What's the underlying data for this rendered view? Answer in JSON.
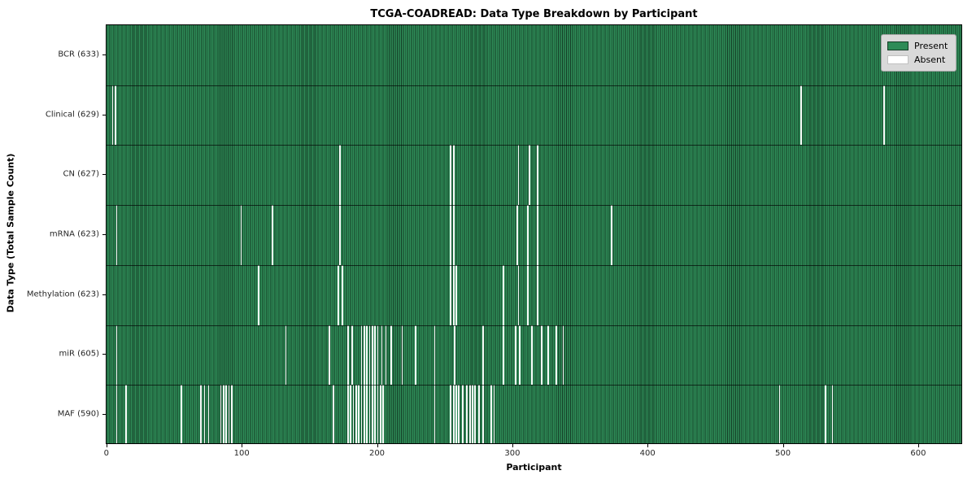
{
  "chart_data": {
    "type": "heatmap",
    "title": "TCGA-COADREAD: Data Type Breakdown by Participant",
    "xlabel": "Participant",
    "ylabel": "Data Type (Total Sample Count)",
    "n_participants": 633,
    "x_ticks": [
      0,
      100,
      200,
      300,
      400,
      500,
      600
    ],
    "grid": false,
    "legend": {
      "position": "upper right",
      "present_label": "Present",
      "absent_label": "Absent"
    },
    "colors": {
      "present_fill": "#2e8b57",
      "cell_edge": "#143d26",
      "absent_fill": "#ffffff",
      "legend_bg": "#d9d9d9",
      "legend_border": "#a3a3a3"
    },
    "rows": [
      {
        "data_type": "BCR",
        "label": "BCR (633)",
        "present_count": 633,
        "absent_participants": []
      },
      {
        "data_type": "Clinical",
        "label": "Clinical (629)",
        "present_count": 629,
        "absent_participants": [
          4,
          6,
          513,
          574
        ]
      },
      {
        "data_type": "CN",
        "label": "CN (627)",
        "present_count": 627,
        "absent_participants": [
          172,
          254,
          256,
          304,
          312,
          318
        ]
      },
      {
        "data_type": "mRNA",
        "label": "mRNA (623)",
        "present_count": 623,
        "absent_participants": [
          7,
          99,
          122,
          172,
          254,
          256,
          303,
          311,
          318,
          373
        ]
      },
      {
        "data_type": "Methylation",
        "label": "Methylation (623)",
        "present_count": 623,
        "absent_participants": [
          112,
          171,
          174,
          254,
          256,
          258,
          293,
          304,
          311,
          318
        ]
      },
      {
        "data_type": "miR",
        "label": "miR (605)",
        "present_count": 605,
        "absent_participants": [
          7,
          132,
          164,
          178,
          181,
          188,
          190,
          192,
          194,
          196,
          198,
          200,
          203,
          206,
          210,
          218,
          228,
          242,
          257,
          278,
          293,
          302,
          305,
          314,
          321,
          326,
          332,
          337
        ]
      },
      {
        "data_type": "MAF",
        "label": "MAF (590)",
        "present_count": 590,
        "absent_participants": [
          7,
          14,
          55,
          69,
          72,
          75,
          84,
          86,
          88,
          90,
          92,
          167,
          178,
          180,
          182,
          184,
          186,
          188,
          190,
          192,
          194,
          196,
          198,
          200,
          202,
          204,
          242,
          254,
          256,
          258,
          260,
          263,
          266,
          268,
          270,
          272,
          275,
          278,
          284,
          286,
          497,
          531,
          536
        ]
      }
    ]
  }
}
